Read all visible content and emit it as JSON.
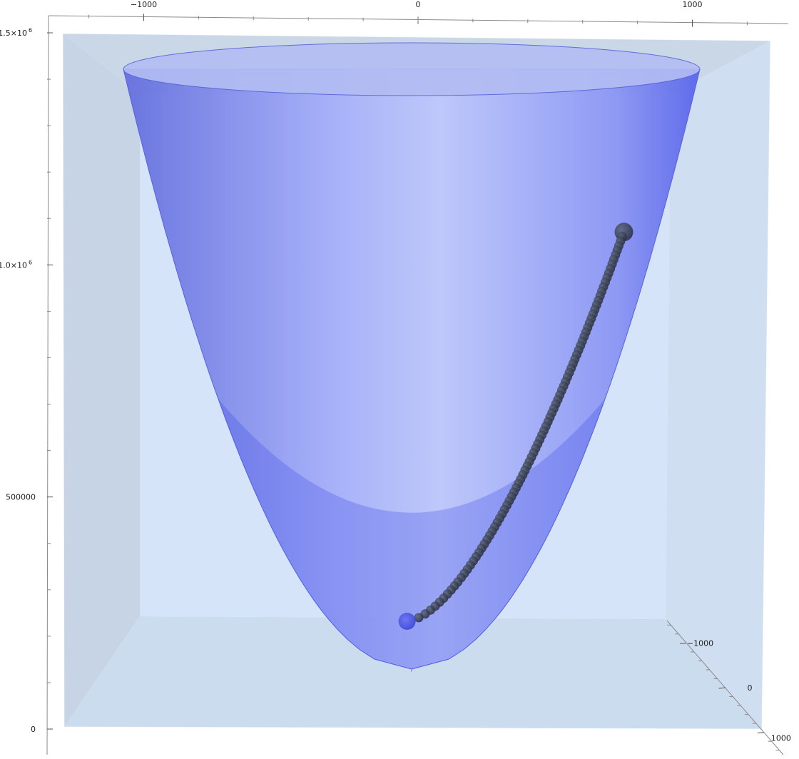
{
  "chart_data": {
    "type": "surface3d",
    "title": "",
    "surface": {
      "kind": "paraboloid",
      "color": "#5f6ff0",
      "bottom_color": "#3d49e8",
      "rim_color": "#aab6f4"
    },
    "axes": {
      "x": {
        "ticks": [
          {
            "value": -1000,
            "label": "−1000"
          },
          {
            "value": 0,
            "label": "0"
          },
          {
            "value": 1000,
            "label": "1000"
          }
        ]
      },
      "y": {
        "ticks": [
          {
            "value": -1000,
            "label": "−1000"
          },
          {
            "value": 0,
            "label": "0"
          },
          {
            "value": 1000,
            "label": "1000"
          }
        ]
      },
      "z": {
        "range": [
          0,
          1500000
        ],
        "ticks": [
          {
            "value": 0,
            "label": "0",
            "exp": ""
          },
          {
            "value": 500000,
            "label": "500000",
            "exp": ""
          },
          {
            "value": 1000000,
            "label": "1.0×10",
            "exp": "6"
          },
          {
            "value": 1500000,
            "label": "1.5×10",
            "exp": "6"
          }
        ]
      }
    },
    "path": {
      "color": "#2f3848",
      "start_point_color": "#4b55e6",
      "count": 90,
      "start": {
        "x": -40,
        "z": 140000
      },
      "end": {
        "x": 740,
        "z": 1080000
      }
    },
    "box": {
      "face_color": "#d6e5f8",
      "side_color": "#c5d4e6"
    }
  }
}
